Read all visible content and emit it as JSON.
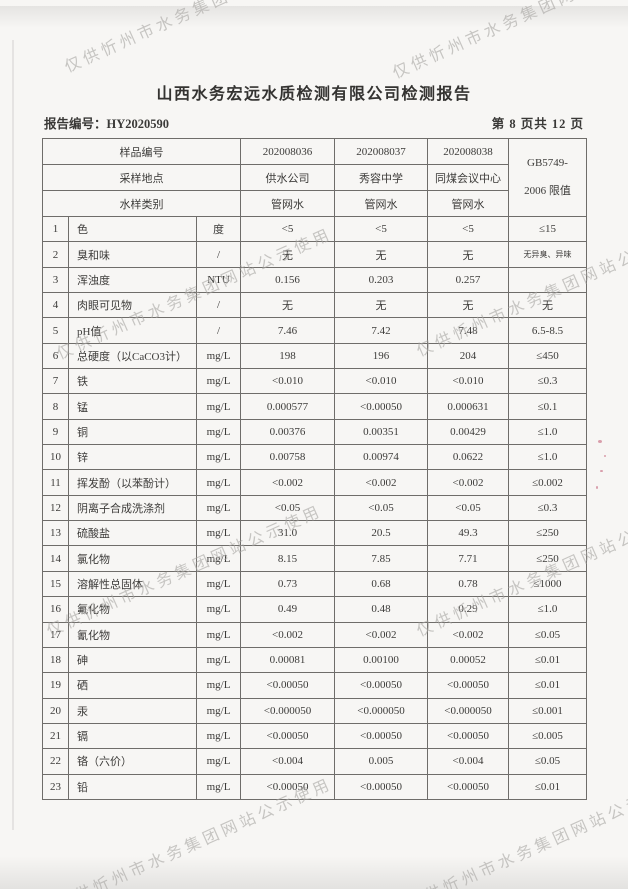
{
  "watermark": {
    "text": "仅供忻州市水务集团网站公示使用"
  },
  "header": {
    "title": "山西水务宏远水质检测有限公司检测报告",
    "report_no_label": "报告编号：",
    "report_no": "HY2020590",
    "page_info": "第 8 页共 12 页"
  },
  "table": {
    "head": {
      "sample_no_label": "样品编号",
      "sample_nos": [
        "202008036",
        "202008037",
        "202008038"
      ],
      "location_label": "采样地点",
      "locations": [
        "供水公司",
        "秀容中学",
        "同煤会议中心"
      ],
      "type_label": "水样类别",
      "types": [
        "管网水",
        "管网水",
        "管网水"
      ],
      "limit_label_line1": "GB5749-",
      "limit_label_line2": "2006 限值"
    },
    "rows": [
      {
        "no": "1",
        "name": "色",
        "unit": "度",
        "v": [
          "<5",
          "<5",
          "<5"
        ],
        "limit": "≤15"
      },
      {
        "no": "2",
        "name": "臭和味",
        "unit": "/",
        "v": [
          "无",
          "无",
          "无"
        ],
        "limit": "无异臭、异味",
        "limit_small": true
      },
      {
        "no": "3",
        "name": "浑浊度",
        "unit": "NTU",
        "v": [
          "0.156",
          "0.203",
          "0.257"
        ],
        "limit": ""
      },
      {
        "no": "4",
        "name": "肉眼可见物",
        "unit": "/",
        "v": [
          "无",
          "无",
          "无"
        ],
        "limit": "无"
      },
      {
        "no": "5",
        "name": "pH值",
        "unit": "/",
        "v": [
          "7.46",
          "7.42",
          "7.48"
        ],
        "limit": "6.5-8.5"
      },
      {
        "no": "6",
        "name": "总硬度（以CaCO3计）",
        "unit": "mg/L",
        "v": [
          "198",
          "196",
          "204"
        ],
        "limit": "≤450"
      },
      {
        "no": "7",
        "name": "铁",
        "unit": "mg/L",
        "v": [
          "<0.010",
          "<0.010",
          "<0.010"
        ],
        "limit": "≤0.3"
      },
      {
        "no": "8",
        "name": "锰",
        "unit": "mg/L",
        "v": [
          "0.000577",
          "<0.00050",
          "0.000631"
        ],
        "limit": "≤0.1"
      },
      {
        "no": "9",
        "name": "铜",
        "unit": "mg/L",
        "v": [
          "0.00376",
          "0.00351",
          "0.00429"
        ],
        "limit": "≤1.0"
      },
      {
        "no": "10",
        "name": "锌",
        "unit": "mg/L",
        "v": [
          "0.00758",
          "0.00974",
          "0.0622"
        ],
        "limit": "≤1.0"
      },
      {
        "no": "11",
        "name": "挥发酚（以苯酚计）",
        "unit": "mg/L",
        "v": [
          "<0.002",
          "<0.002",
          "<0.002"
        ],
        "limit": "≤0.002"
      },
      {
        "no": "12",
        "name": "阴离子合成洗涤剂",
        "unit": "mg/L",
        "v": [
          "<0.05",
          "<0.05",
          "<0.05"
        ],
        "limit": "≤0.3"
      },
      {
        "no": "13",
        "name": "硫酸盐",
        "unit": "mg/L",
        "v": [
          "31.0",
          "20.5",
          "49.3"
        ],
        "limit": "≤250"
      },
      {
        "no": "14",
        "name": "氯化物",
        "unit": "mg/L",
        "v": [
          "8.15",
          "7.85",
          "7.71"
        ],
        "limit": "≤250"
      },
      {
        "no": "15",
        "name": "溶解性总固体",
        "unit": "mg/L",
        "v": [
          "0.73",
          "0.68",
          "0.78"
        ],
        "limit": "≤1000"
      },
      {
        "no": "16",
        "name": "氟化物",
        "unit": "mg/L",
        "v": [
          "0.49",
          "0.48",
          "0.29"
        ],
        "limit": "≤1.0"
      },
      {
        "no": "17",
        "name": "氰化物",
        "unit": "mg/L",
        "v": [
          "<0.002",
          "<0.002",
          "<0.002"
        ],
        "limit": "≤0.05"
      },
      {
        "no": "18",
        "name": "砷",
        "unit": "mg/L",
        "v": [
          "0.00081",
          "0.00100",
          "0.00052"
        ],
        "limit": "≤0.01"
      },
      {
        "no": "19",
        "name": "硒",
        "unit": "mg/L",
        "v": [
          "<0.00050",
          "<0.00050",
          "<0.00050"
        ],
        "limit": "≤0.01"
      },
      {
        "no": "20",
        "name": "汞",
        "unit": "mg/L",
        "v": [
          "<0.000050",
          "<0.000050",
          "<0.000050"
        ],
        "limit": "≤0.001"
      },
      {
        "no": "21",
        "name": "镉",
        "unit": "mg/L",
        "v": [
          "<0.00050",
          "<0.00050",
          "<0.00050"
        ],
        "limit": "≤0.005"
      },
      {
        "no": "22",
        "name": "铬（六价）",
        "unit": "mg/L",
        "v": [
          "<0.004",
          "0.005",
          "<0.004"
        ],
        "limit": "≤0.05"
      },
      {
        "no": "23",
        "name": "铅",
        "unit": "mg/L",
        "v": [
          "<0.00050",
          "<0.00050",
          "<0.00050"
        ],
        "limit": "≤0.01"
      }
    ]
  }
}
